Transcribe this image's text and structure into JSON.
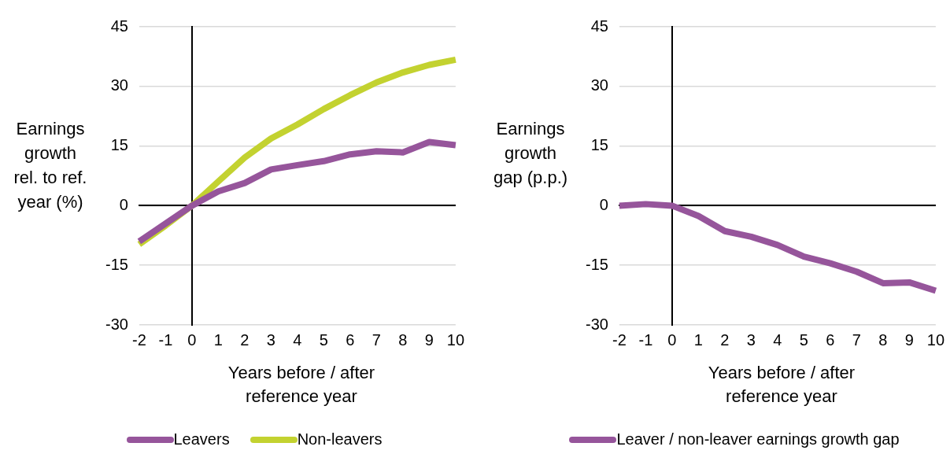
{
  "chart_data": [
    {
      "type": "line",
      "xlabel": "Years before / after reference year",
      "ylabel": "Earnings growth rel. to ref. year (%)",
      "categories": [
        "-2",
        "-1",
        "0",
        "1",
        "2",
        "3",
        "4",
        "5",
        "6",
        "7",
        "8",
        "9",
        "10"
      ],
      "series": [
        {
          "name": "Leavers",
          "color": "#96559b",
          "values": [
            -9,
            -4.5,
            0,
            3.6,
            5.7,
            9.1,
            10.2,
            11.2,
            12.9,
            13.7,
            13.4,
            16,
            15.2
          ]
        },
        {
          "name": "Non-leavers",
          "color": "#c3d230",
          "values": [
            -9.7,
            -5,
            0,
            6.1,
            12.1,
            16.9,
            20.4,
            24.3,
            27.8,
            31,
            33.5,
            35.4,
            36.7
          ]
        }
      ],
      "ylim": [
        -30,
        45
      ],
      "yticks": [
        -30,
        -15,
        0,
        15,
        30,
        45
      ],
      "grid": "y",
      "legend": "bottom",
      "marker": "none",
      "line_style": "solid",
      "ref_lines": [
        {
          "axis": "x",
          "value": "0",
          "color": "#000000"
        }
      ]
    },
    {
      "type": "line",
      "xlabel": "Years before / after reference year",
      "ylabel": "Earnings growth gap (p.p.)",
      "categories": [
        "-2",
        "-1",
        "0",
        "1",
        "2",
        "3",
        "4",
        "5",
        "6",
        "7",
        "8",
        "9",
        "10"
      ],
      "series": [
        {
          "name": "Leaver / non-leaver earnings growth gap",
          "color": "#96559b",
          "values": [
            0,
            0.4,
            0,
            -2.6,
            -6.4,
            -7.8,
            -9.9,
            -12.8,
            -14.5,
            -16.6,
            -19.5,
            -19.3,
            -21.4
          ]
        }
      ],
      "ylim": [
        -30,
        45
      ],
      "yticks": [
        -30,
        -15,
        0,
        15,
        30,
        45
      ],
      "grid": "y",
      "legend": "bottom",
      "marker": "none",
      "line_style": "solid",
      "ref_lines": [
        {
          "axis": "x",
          "value": "0",
          "color": "#000000"
        }
      ]
    }
  ]
}
